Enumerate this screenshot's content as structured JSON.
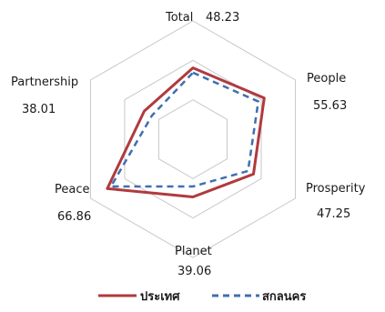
{
  "chart_data": {
    "type": "radar",
    "axes": [
      {
        "name": "Total",
        "value": "48.23"
      },
      {
        "name": "People",
        "value": "55.63"
      },
      {
        "name": "Prosperity",
        "value": "47.25"
      },
      {
        "name": "Planet",
        "value": "39.06"
      },
      {
        "name": "Peace",
        "value": "66.86"
      },
      {
        "name": "Partnership",
        "value": "38.01"
      }
    ],
    "series": [
      {
        "name": "ประเทศ",
        "color": "#b03a3e",
        "style": "solid",
        "values": [
          48.23,
          55.63,
          47.25,
          39.06,
          66.86,
          38.01
        ]
      },
      {
        "name": "สกลนคร",
        "color": "#3f6fb0",
        "style": "dashed",
        "values": [
          45.0,
          51.0,
          43.0,
          32.0,
          64.0,
          32.0
        ]
      }
    ],
    "rmax": 80,
    "grid_levels": 3,
    "grid": true,
    "legend_position": "bottom"
  }
}
